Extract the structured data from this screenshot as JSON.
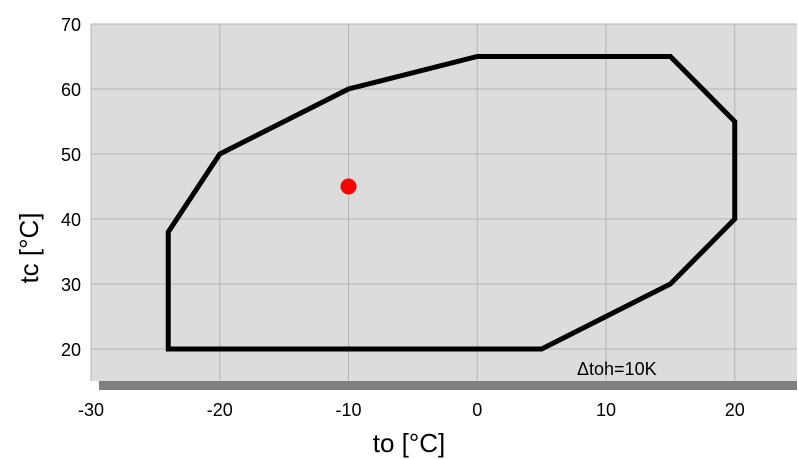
{
  "chart_data": {
    "type": "line",
    "title": "",
    "xlabel": "to [°C]",
    "ylabel": "tc [°C]",
    "xlim": [
      -30,
      25
    ],
    "ylim": [
      15,
      70
    ],
    "xticks": [
      -30,
      -20,
      -10,
      0,
      10,
      20
    ],
    "yticks": [
      20,
      30,
      40,
      50,
      60,
      70
    ],
    "grid": true,
    "legend": "none",
    "annotation": "Δtoh=10K",
    "series": [
      {
        "kind": "closed-polygon",
        "color": "#000000",
        "points": [
          {
            "x": -24,
            "y": 20
          },
          {
            "x": -24,
            "y": 38
          },
          {
            "x": -20,
            "y": 50
          },
          {
            "x": -10,
            "y": 60
          },
          {
            "x": 0,
            "y": 65
          },
          {
            "x": 15,
            "y": 65
          },
          {
            "x": 20,
            "y": 55
          },
          {
            "x": 20,
            "y": 40
          },
          {
            "x": 15,
            "y": 30
          },
          {
            "x": 5,
            "y": 20
          }
        ]
      },
      {
        "kind": "point",
        "color": "#ff0000",
        "points": [
          {
            "x": -10,
            "y": 45
          }
        ]
      }
    ],
    "colors": {
      "plot_background": "#dcdcdc",
      "grid": "#b4b4b4",
      "envelope": "#000000",
      "operating_point": "#ff0000",
      "bottom_bar": "#808080"
    }
  }
}
